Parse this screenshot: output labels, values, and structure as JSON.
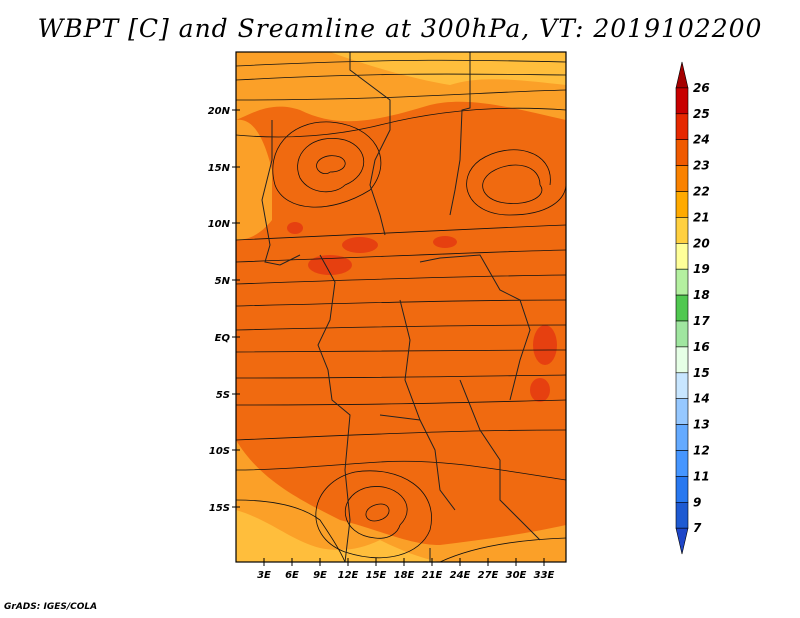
{
  "title": "WBPT [C] and Sreamline at 300hPa, VT: 2019102200",
  "lat_labels": [
    "20N",
    "15N",
    "10N",
    "5N",
    "EQ",
    "5S",
    "10S",
    "15S"
  ],
  "lon_labels": [
    "3E",
    "6E",
    "9E",
    "12E",
    "15E",
    "18E",
    "21E",
    "24E",
    "27E",
    "30E",
    "33E"
  ],
  "colorbar": {
    "labels": [
      "26",
      "25",
      "24",
      "23",
      "22",
      "21",
      "20",
      "19",
      "18",
      "17",
      "16",
      "15",
      "14",
      "13",
      "12",
      "11",
      "9",
      "7"
    ],
    "colors": [
      "#a50000",
      "#c80000",
      "#e62800",
      "#f05a00",
      "#fa8200",
      "#ffaa00",
      "#ffd040",
      "#ffff99",
      "#b4f0a0",
      "#50c850",
      "#a0e6a0",
      "#e6ffe6",
      "#c8e6ff",
      "#96c8ff",
      "#64aaff",
      "#4696ff",
      "#2878f0",
      "#1e5ad2",
      "#1e46c8"
    ]
  },
  "footer": "GrADS: IGES/COLA"
}
